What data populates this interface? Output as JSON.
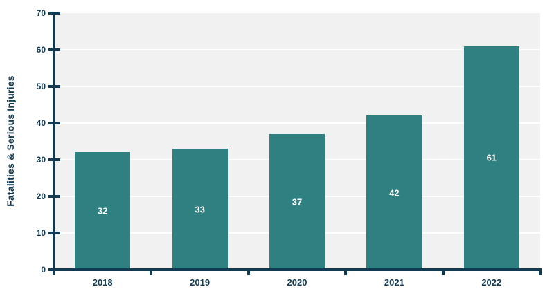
{
  "chart_data": {
    "type": "bar",
    "categories": [
      "2018",
      "2019",
      "2020",
      "2021",
      "2022"
    ],
    "values": [
      32,
      33,
      37,
      42,
      61
    ],
    "data_labels": [
      "32",
      "33",
      "37",
      "42",
      "61"
    ],
    "title": "",
    "xlabel": "",
    "ylabel": "Fatalities & Serious Injuries",
    "ylim": [
      0,
      70
    ],
    "yticks": [
      0,
      10,
      20,
      30,
      40,
      50,
      60,
      70
    ],
    "grid": "horizontal white gridlines on light gray plot background",
    "legend_position": "none",
    "colors": {
      "bar": "#2e8180",
      "axis_and_text": "#123a52",
      "plot_background": "#f1f1f1",
      "gridline": "#ffffff",
      "data_label_text": "#ffffff",
      "page_background": "#ffffff"
    }
  }
}
